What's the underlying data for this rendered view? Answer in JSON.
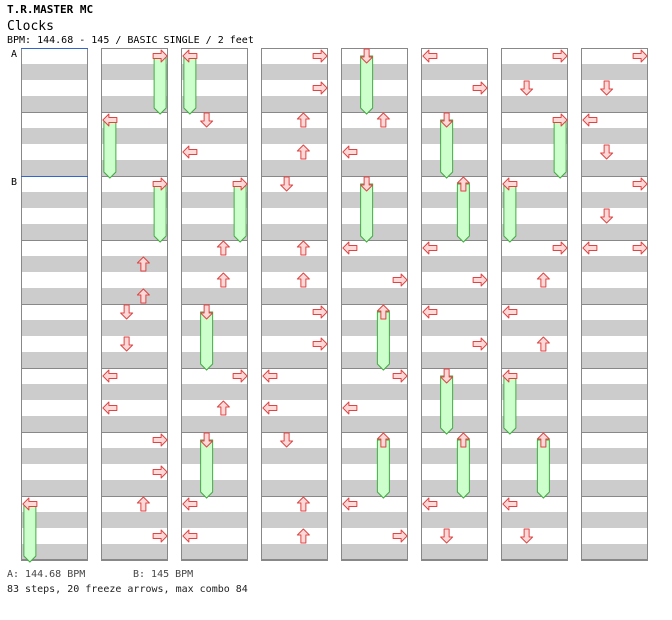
{
  "header": {
    "artist": "T.R.MASTER MC",
    "title": "Clocks",
    "bpm_line": "BPM: 144.68 - 145 / BASIC SINGLE / 2 feet"
  },
  "markers": {
    "a": "A",
    "b": "B"
  },
  "footer": {
    "bpm_a": "A: 144.68 BPM",
    "bpm_b": "B: 145 BPM",
    "summary": "83 steps, 20 freeze arrows, max combo 84"
  },
  "colors": {
    "stripe": "#cccccc",
    "border": "#888888",
    "arrow_fill": "#ffd8d8",
    "arrow_stroke": "#dd4444",
    "freeze_fill": "#ccffcc",
    "freeze_stroke": "#44aa44",
    "bpm_marker": "#3366cc"
  },
  "chart_data": {
    "type": "step_chart",
    "lanes": [
      "left",
      "down",
      "up",
      "right"
    ],
    "columns": 8,
    "measures_per_column": 8,
    "steps_per_measure": 4,
    "notes": [
      {
        "col": 0,
        "m": 7,
        "b": 0,
        "dir": "left",
        "len": 1.5
      },
      {
        "col": 1,
        "m": 0,
        "b": 0,
        "dir": "right",
        "len": 1.5
      },
      {
        "col": 1,
        "m": 1,
        "b": 0,
        "dir": "left",
        "len": 1.5
      },
      {
        "col": 1,
        "m": 2,
        "b": 0,
        "dir": "right",
        "len": 1.5
      },
      {
        "col": 1,
        "m": 3,
        "b": 1,
        "dir": "up"
      },
      {
        "col": 1,
        "m": 3,
        "b": 3,
        "dir": "up"
      },
      {
        "col": 1,
        "m": 4,
        "b": 0,
        "dir": "down"
      },
      {
        "col": 1,
        "m": 4,
        "b": 2,
        "dir": "down"
      },
      {
        "col": 1,
        "m": 5,
        "b": 0,
        "dir": "left"
      },
      {
        "col": 1,
        "m": 5,
        "b": 2,
        "dir": "left"
      },
      {
        "col": 1,
        "m": 6,
        "b": 0,
        "dir": "right"
      },
      {
        "col": 1,
        "m": 6,
        "b": 2,
        "dir": "right"
      },
      {
        "col": 1,
        "m": 7,
        "b": 0,
        "dir": "up"
      },
      {
        "col": 1,
        "m": 7,
        "b": 2,
        "dir": "right"
      },
      {
        "col": 2,
        "m": 0,
        "b": 0,
        "dir": "left",
        "len": 1.5
      },
      {
        "col": 2,
        "m": 1,
        "b": 0,
        "dir": "down"
      },
      {
        "col": 2,
        "m": 1,
        "b": 2,
        "dir": "left"
      },
      {
        "col": 2,
        "m": 2,
        "b": 0,
        "dir": "right",
        "len": 1.5
      },
      {
        "col": 2,
        "m": 3,
        "b": 0,
        "dir": "up"
      },
      {
        "col": 2,
        "m": 3,
        "b": 2,
        "dir": "up"
      },
      {
        "col": 2,
        "m": 4,
        "b": 0,
        "dir": "down",
        "len": 1.5
      },
      {
        "col": 2,
        "m": 5,
        "b": 0,
        "dir": "right"
      },
      {
        "col": 2,
        "m": 5,
        "b": 2,
        "dir": "up"
      },
      {
        "col": 2,
        "m": 6,
        "b": 0,
        "dir": "down",
        "len": 1.5
      },
      {
        "col": 2,
        "m": 7,
        "b": 0,
        "dir": "left"
      },
      {
        "col": 2,
        "m": 7,
        "b": 2,
        "dir": "left"
      },
      {
        "col": 3,
        "m": 0,
        "b": 0,
        "dir": "right"
      },
      {
        "col": 3,
        "m": 0,
        "b": 2,
        "dir": "right"
      },
      {
        "col": 3,
        "m": 1,
        "b": 0,
        "dir": "up"
      },
      {
        "col": 3,
        "m": 1,
        "b": 2,
        "dir": "up"
      },
      {
        "col": 3,
        "m": 2,
        "b": 0,
        "dir": "down"
      },
      {
        "col": 3,
        "m": 3,
        "b": 0,
        "dir": "up"
      },
      {
        "col": 3,
        "m": 3,
        "b": 2,
        "dir": "up"
      },
      {
        "col": 3,
        "m": 4,
        "b": 0,
        "dir": "right"
      },
      {
        "col": 3,
        "m": 4,
        "b": 2,
        "dir": "right"
      },
      {
        "col": 3,
        "m": 5,
        "b": 0,
        "dir": "left"
      },
      {
        "col": 3,
        "m": 5,
        "b": 2,
        "dir": "left"
      },
      {
        "col": 3,
        "m": 6,
        "b": 0,
        "dir": "down"
      },
      {
        "col": 3,
        "m": 7,
        "b": 0,
        "dir": "up"
      },
      {
        "col": 3,
        "m": 7,
        "b": 2,
        "dir": "up"
      },
      {
        "col": 4,
        "m": 0,
        "b": 0,
        "dir": "down",
        "len": 1.5
      },
      {
        "col": 4,
        "m": 1,
        "b": 0,
        "dir": "up"
      },
      {
        "col": 4,
        "m": 1,
        "b": 2,
        "dir": "left"
      },
      {
        "col": 4,
        "m": 2,
        "b": 0,
        "dir": "down",
        "len": 1.5
      },
      {
        "col": 4,
        "m": 3,
        "b": 0,
        "dir": "left"
      },
      {
        "col": 4,
        "m": 3,
        "b": 2,
        "dir": "right"
      },
      {
        "col": 4,
        "m": 4,
        "b": 0,
        "dir": "up",
        "len": 1.5
      },
      {
        "col": 4,
        "m": 5,
        "b": 0,
        "dir": "right"
      },
      {
        "col": 4,
        "m": 5,
        "b": 2,
        "dir": "left"
      },
      {
        "col": 4,
        "m": 6,
        "b": 0,
        "dir": "up",
        "len": 1.5
      },
      {
        "col": 4,
        "m": 7,
        "b": 0,
        "dir": "left"
      },
      {
        "col": 4,
        "m": 7,
        "b": 2,
        "dir": "right"
      },
      {
        "col": 5,
        "m": 0,
        "b": 0,
        "dir": "left"
      },
      {
        "col": 5,
        "m": 0,
        "b": 2,
        "dir": "right"
      },
      {
        "col": 5,
        "m": 1,
        "b": 0,
        "dir": "down",
        "len": 1.5
      },
      {
        "col": 5,
        "m": 2,
        "b": 0,
        "dir": "up",
        "len": 1.5
      },
      {
        "col": 5,
        "m": 3,
        "b": 0,
        "dir": "left"
      },
      {
        "col": 5,
        "m": 3,
        "b": 2,
        "dir": "right"
      },
      {
        "col": 5,
        "m": 4,
        "b": 0,
        "dir": "left"
      },
      {
        "col": 5,
        "m": 4,
        "b": 2,
        "dir": "right"
      },
      {
        "col": 5,
        "m": 5,
        "b": 0,
        "dir": "down",
        "len": 1.5
      },
      {
        "col": 5,
        "m": 6,
        "b": 0,
        "dir": "up",
        "len": 1.5
      },
      {
        "col": 5,
        "m": 7,
        "b": 0,
        "dir": "left"
      },
      {
        "col": 5,
        "m": 7,
        "b": 2,
        "dir": "down"
      },
      {
        "col": 6,
        "m": 0,
        "b": 0,
        "dir": "right"
      },
      {
        "col": 6,
        "m": 0,
        "b": 2,
        "dir": "down"
      },
      {
        "col": 6,
        "m": 1,
        "b": 0,
        "dir": "right",
        "len": 1.5
      },
      {
        "col": 6,
        "m": 2,
        "b": 0,
        "dir": "left",
        "len": 1.5
      },
      {
        "col": 6,
        "m": 3,
        "b": 0,
        "dir": "right"
      },
      {
        "col": 6,
        "m": 3,
        "b": 2,
        "dir": "up"
      },
      {
        "col": 6,
        "m": 4,
        "b": 0,
        "dir": "left"
      },
      {
        "col": 6,
        "m": 4,
        "b": 2,
        "dir": "up"
      },
      {
        "col": 6,
        "m": 5,
        "b": 0,
        "dir": "left",
        "len": 1.5
      },
      {
        "col": 6,
        "m": 6,
        "b": 0,
        "dir": "up",
        "len": 1.5
      },
      {
        "col": 6,
        "m": 7,
        "b": 0,
        "dir": "left"
      },
      {
        "col": 6,
        "m": 7,
        "b": 2,
        "dir": "down"
      },
      {
        "col": 7,
        "m": 0,
        "b": 0,
        "dir": "right"
      },
      {
        "col": 7,
        "m": 0,
        "b": 2,
        "dir": "down"
      },
      {
        "col": 7,
        "m": 1,
        "b": 0,
        "dir": "left"
      },
      {
        "col": 7,
        "m": 1,
        "b": 2,
        "dir": "down"
      },
      {
        "col": 7,
        "m": 2,
        "b": 0,
        "dir": "right"
      },
      {
        "col": 7,
        "m": 2,
        "b": 2,
        "dir": "down"
      },
      {
        "col": 7,
        "m": 3,
        "b": 0,
        "dir": "left"
      },
      {
        "col": 7,
        "m": 3,
        "b": 0,
        "dir": "right"
      }
    ]
  }
}
